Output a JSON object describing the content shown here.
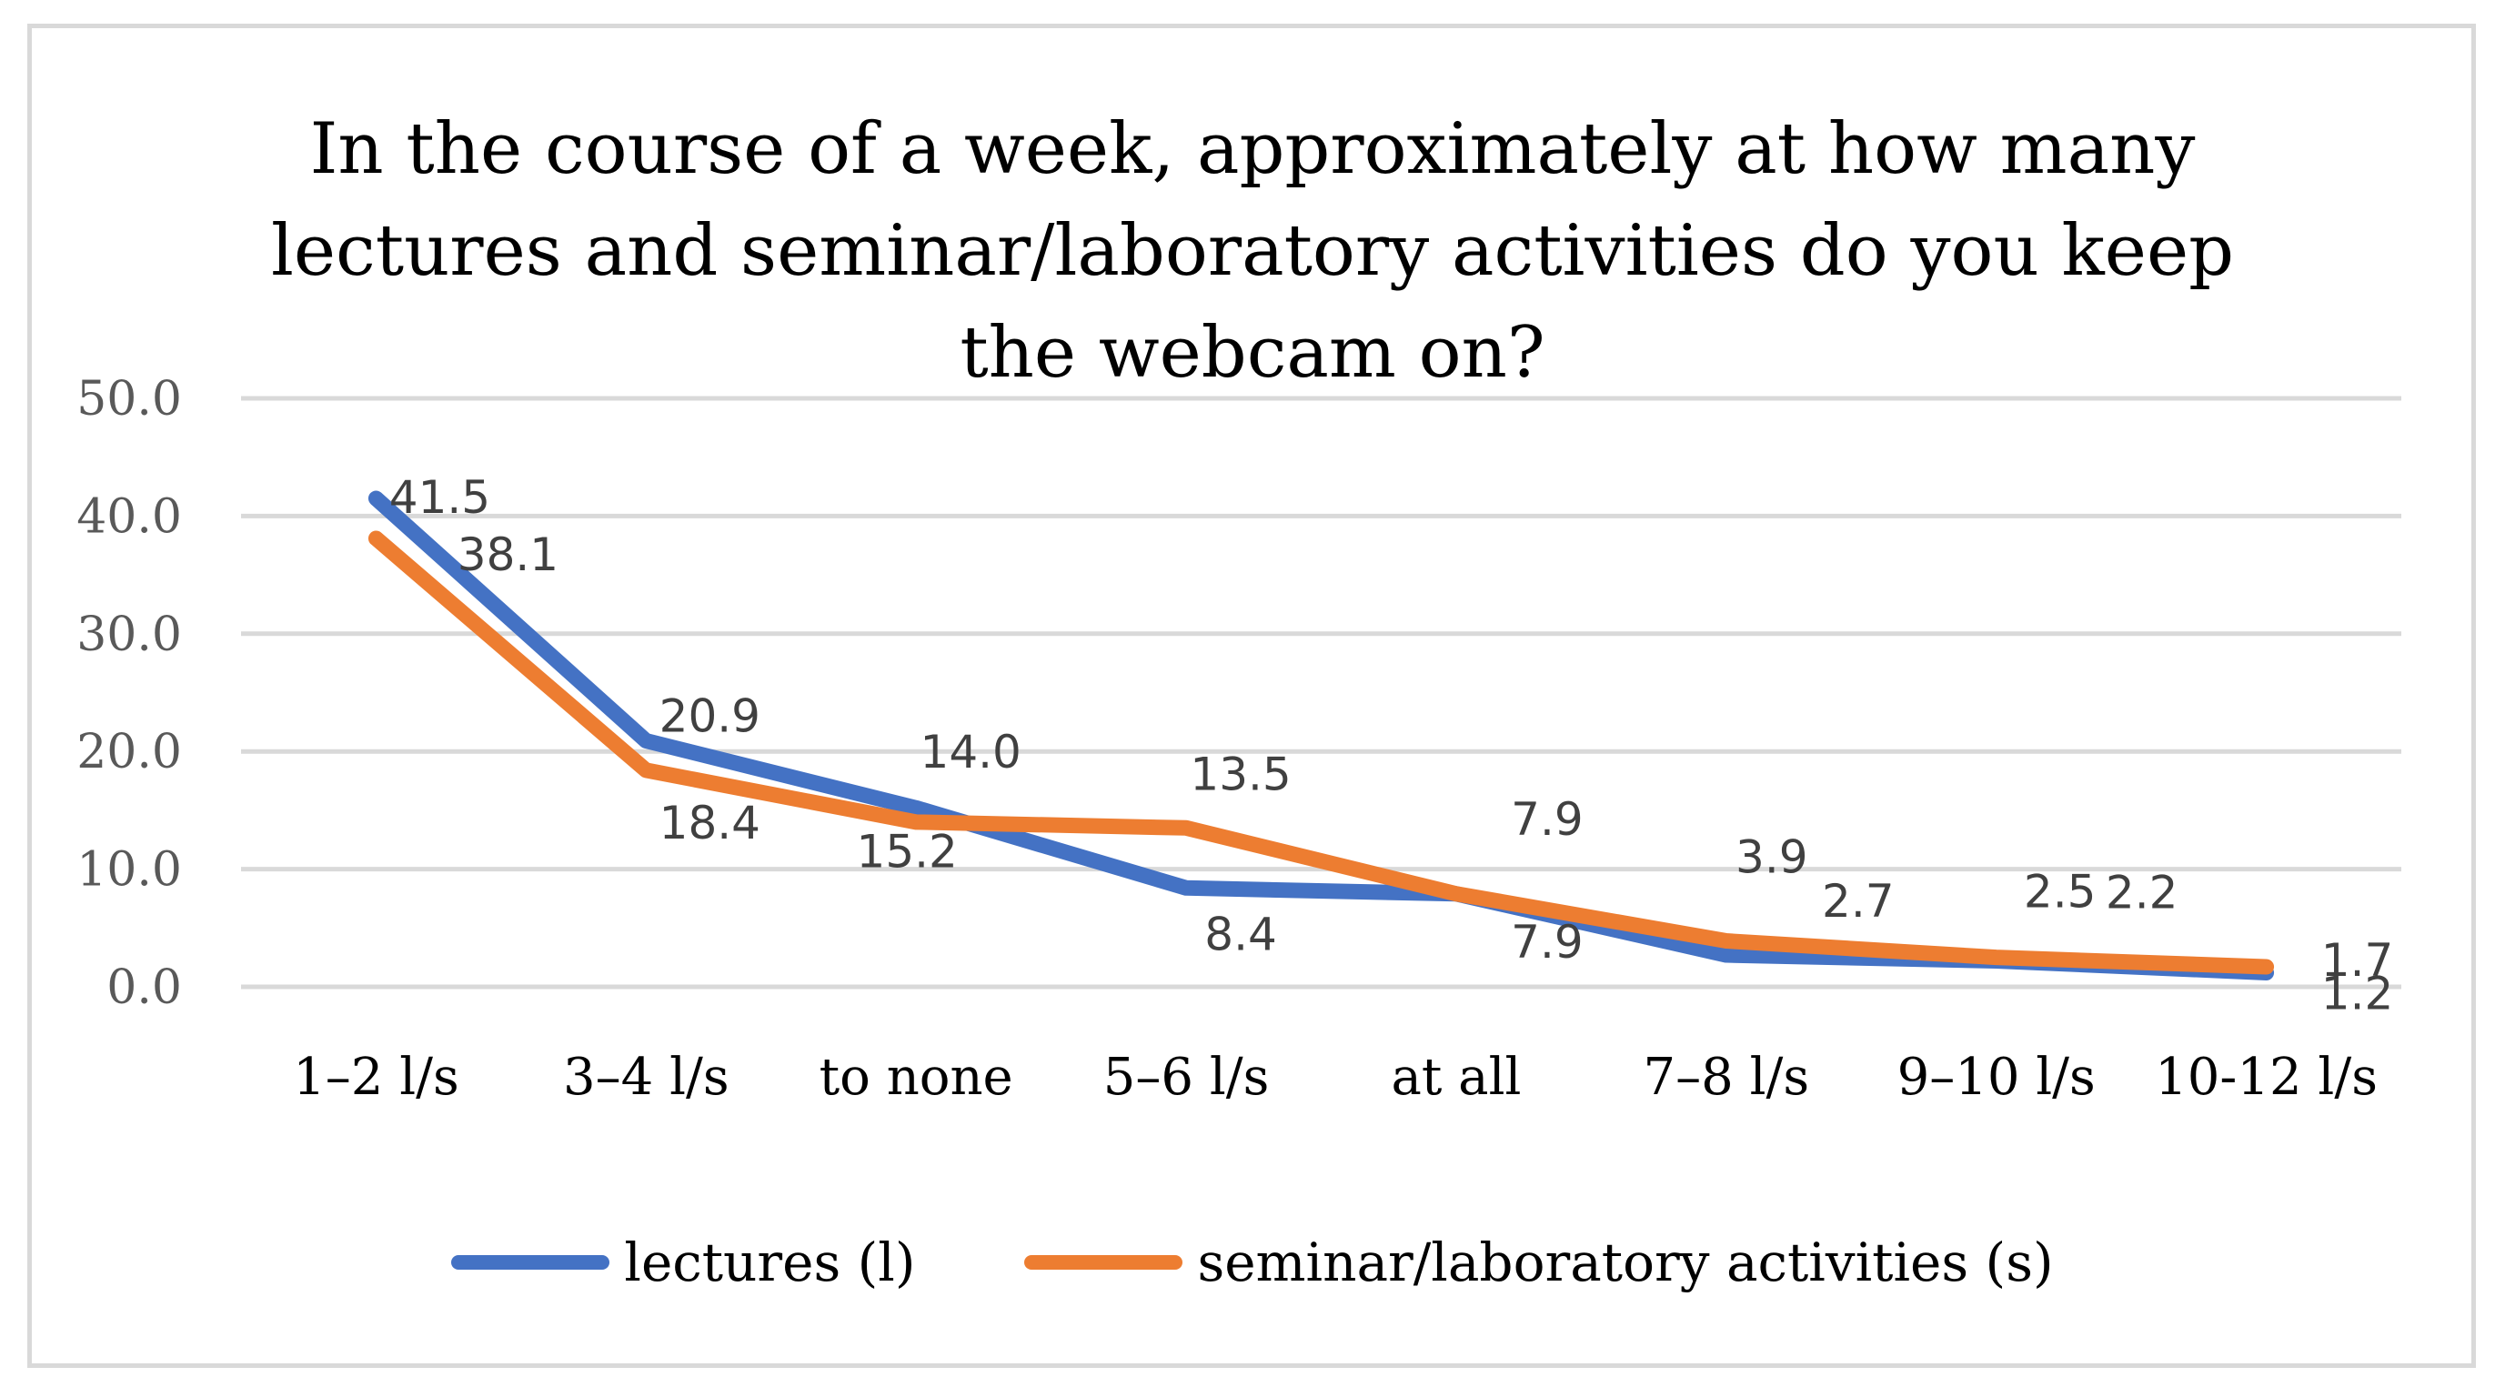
{
  "chart_data": {
    "type": "line",
    "title_lines": [
      "In the course of a week, approximately at how many",
      "lectures and seminar/laboratory activities do you keep",
      "the webcam on?"
    ],
    "categories": [
      "1–2 l/s",
      "3–4 l/s",
      "to none",
      "5–6 l/s",
      "at all",
      "7–8 l/s",
      "9–10 l/s",
      "10-12 l/s"
    ],
    "ylim": [
      0,
      50
    ],
    "yticks": [
      "0.0",
      "10.0",
      "20.0",
      "30.0",
      "40.0",
      "50.0"
    ],
    "grid": true,
    "legend_position": "bottom",
    "series": [
      {
        "name": "lectures (l)",
        "color": "#4472c4",
        "values": [
          41.5,
          20.9,
          15.2,
          8.4,
          7.9,
          2.7,
          2.2,
          1.2
        ],
        "labels": [
          "41.5",
          "20.9",
          "15.2",
          "8.4",
          "7.9",
          "2.7",
          "2.2",
          "1.2"
        ]
      },
      {
        "name": "seminar/laboratory activities (s)",
        "color": "#ed7d31",
        "values": [
          38.1,
          18.4,
          14.0,
          13.5,
          7.9,
          3.9,
          2.5,
          1.7
        ],
        "labels": [
          "38.1",
          "18.4",
          "14.0",
          "13.5",
          "7.9",
          "3.9",
          "2.5",
          "1.7"
        ]
      }
    ]
  }
}
